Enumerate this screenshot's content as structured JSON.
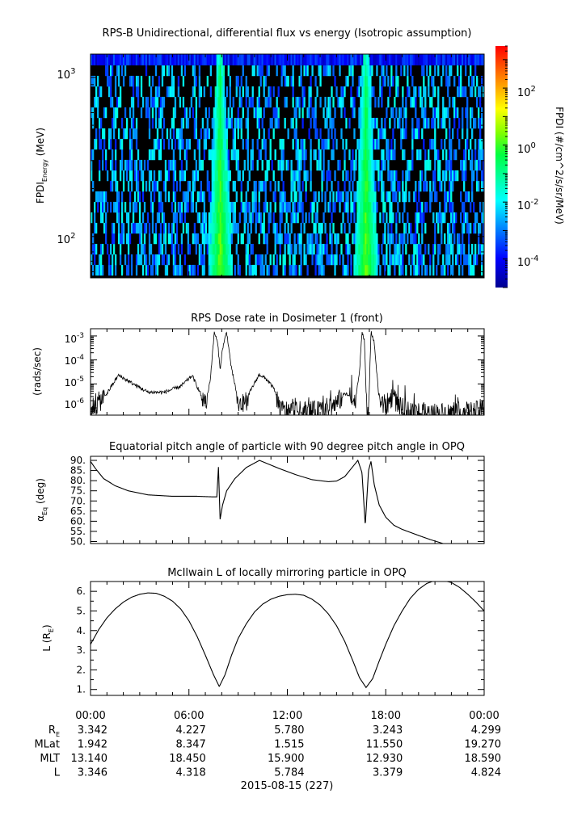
{
  "xaxis": {
    "time_ticks": [
      "00:00",
      "06:00",
      "12:00",
      "18:00",
      "00:00"
    ],
    "date_label": "2015-08-15 (227)",
    "ephemeris": [
      {
        "label": "R",
        "sub": "E",
        "values": [
          "3.342",
          "4.227",
          "5.780",
          "3.243",
          "4.299"
        ]
      },
      {
        "label": "MLat",
        "sub": "",
        "values": [
          "1.942",
          "8.347",
          "1.515",
          "11.550",
          "19.270"
        ]
      },
      {
        "label": "MLT",
        "sub": "",
        "values": [
          "13.140",
          "18.450",
          "15.900",
          "12.930",
          "18.590"
        ]
      },
      {
        "label": "L",
        "sub": "",
        "values": [
          "3.346",
          "4.318",
          "5.784",
          "3.379",
          "4.824"
        ]
      }
    ]
  },
  "chart_data": [
    {
      "type": "heatmap",
      "title": "RPS-B  Unidirectional, differential flux vs energy (Isotropic assumption)",
      "ylabel_main": "FPDI",
      "ylabel_sub": "Energy",
      "ylabel_unit": " (MeV)",
      "yscale": "log",
      "ylim": [
        55,
        1400
      ],
      "ytick_base": "10",
      "ytick_exp": [
        "3",
        "2"
      ],
      "xlim_hours": [
        0,
        24
      ],
      "colorbar_label": "FPDI (#/cm^2/s/sr/MeV)",
      "colorscale": "log",
      "crange": [
        1e-05,
        3000
      ],
      "cbar_base": "10",
      "cbar_exp": [
        "2",
        "0",
        "-2",
        "-4"
      ],
      "energy_bins": 20,
      "belt_crossings_hours": [
        7.9,
        16.8
      ],
      "peak_flux": 2.0
    },
    {
      "type": "line",
      "title": "RPS  Dose rate in Dosimeter 1 (front)",
      "ylabel": "(rads/sec)",
      "yscale": "log",
      "ylim": [
        5e-07,
        0.002
      ],
      "ytick_base": "10",
      "ytick_exp": [
        "-3",
        "-4",
        "-5",
        "-6"
      ],
      "x_hours": [
        0,
        0.3,
        1.0,
        1.7,
        2.5,
        3.5,
        4.5,
        5.5,
        6.2,
        6.7,
        7.0,
        7.3,
        7.55,
        7.75,
        7.9,
        8.05,
        8.3,
        8.6,
        8.8,
        9.0,
        9.4,
        9.8,
        10.3,
        10.8,
        11.2,
        11.6,
        12.5,
        14.0,
        15.0,
        15.5,
        15.8,
        16.1,
        16.4,
        16.55,
        16.7,
        16.85,
        16.95,
        17.1,
        17.3,
        17.6,
        18.0,
        18.4,
        18.9,
        19.4,
        20.5,
        22.0,
        23.5,
        24.0
      ],
      "y_values": [
        1e-06,
        1.2e-06,
        4e-06,
        2.3e-05,
        1.1e-05,
        4.5e-06,
        4.5e-06,
        8e-06,
        2.2e-05,
        4e-06,
        1.2e-06,
        1.5e-05,
        0.0015,
        0.0005,
        4e-05,
        0.0003,
        0.0015,
        4e-05,
        1e-05,
        1.3e-06,
        1.4e-06,
        6e-06,
        2.5e-05,
        1.4e-05,
        6e-06,
        8e-07,
        7e-07,
        7e-07,
        1.5e-06,
        4e-06,
        3e-06,
        1.5e-06,
        3e-05,
        0.0015,
        0.0007,
        5e-07,
        5e-07,
        0.0016,
        0.0005,
        2e-06,
        1.2e-06,
        3e-06,
        1e-06,
        7e-07,
        6e-07,
        6e-07,
        7e-07,
        1e-06
      ]
    },
    {
      "type": "line",
      "title": "Equatorial pitch angle of particle with 90 degree pitch angle in OPQ",
      "ylabel_main": "α",
      "ylabel_sub": "Eq",
      "ylabel_unit": " (deg)",
      "ylim": [
        49,
        92
      ],
      "yticks": [
        "50.",
        "55.",
        "60.",
        "65.",
        "70.",
        "75.",
        "80.",
        "85.",
        "90."
      ],
      "x_hours": [
        0,
        0.3,
        0.8,
        1.5,
        2.3,
        3.5,
        5.0,
        6.5,
        7.5,
        7.7,
        7.8,
        7.9,
        8.05,
        8.3,
        8.8,
        9.5,
        10.3,
        10.6,
        11.5,
        12.5,
        13.5,
        14.5,
        15.0,
        15.5,
        15.9,
        16.3,
        16.55,
        16.75,
        16.95,
        17.1,
        17.3,
        17.6,
        18.0,
        18.5,
        19.0,
        20.0,
        20.7,
        21.5,
        24.0
      ],
      "y_values": [
        89.5,
        86.0,
        81.0,
        77.5,
        75.0,
        73.0,
        72.3,
        72.3,
        72.0,
        72.0,
        86.7,
        61.0,
        68.0,
        75.0,
        81.0,
        86.5,
        90.0,
        89.0,
        86.0,
        83.0,
        80.5,
        79.5,
        79.8,
        82.0,
        86.0,
        90.0,
        84.0,
        58.0,
        85.0,
        89.5,
        78.0,
        68.0,
        62.0,
        58.0,
        56.0,
        53.0,
        51.0,
        49.0,
        49.0
      ]
    },
    {
      "type": "line",
      "title": "McIlwain L of locally mirroring particle in OPQ",
      "ylabel_main": "L (R",
      "ylabel_sub": "E",
      "ylabel_unit": ")",
      "ylim": [
        0.7,
        6.5
      ],
      "yticks": [
        "1.",
        "1.5",
        "2.",
        "2.5",
        "3.",
        "3.5",
        "4.",
        "4.5",
        "5.",
        "5.5",
        "6."
      ],
      "x_hours": [
        0,
        0.5,
        1.0,
        1.5,
        2.0,
        2.5,
        3.0,
        3.5,
        4.0,
        4.5,
        5.0,
        5.5,
        6.0,
        6.5,
        7.0,
        7.5,
        7.85,
        8.2,
        8.6,
        9.0,
        9.5,
        10.0,
        10.5,
        11.0,
        11.5,
        12.0,
        12.5,
        13.0,
        13.5,
        14.0,
        14.5,
        15.0,
        15.5,
        16.0,
        16.4,
        16.8,
        17.2,
        17.6,
        18.0,
        18.5,
        19.0,
        19.5,
        20.0,
        20.5,
        21.0,
        21.5,
        22.0,
        22.5,
        23.0,
        23.5,
        24.0
      ],
      "y_values": [
        3.3,
        4.05,
        4.65,
        5.1,
        5.45,
        5.7,
        5.85,
        5.92,
        5.9,
        5.75,
        5.5,
        5.1,
        4.5,
        3.7,
        2.75,
        1.75,
        1.15,
        1.75,
        2.75,
        3.6,
        4.35,
        4.95,
        5.35,
        5.6,
        5.75,
        5.83,
        5.85,
        5.8,
        5.6,
        5.3,
        4.85,
        4.25,
        3.45,
        2.45,
        1.6,
        1.1,
        1.55,
        2.45,
        3.3,
        4.25,
        5.0,
        5.65,
        6.1,
        6.4,
        6.55,
        6.55,
        6.45,
        6.2,
        5.85,
        5.45,
        5.0
      ]
    }
  ]
}
